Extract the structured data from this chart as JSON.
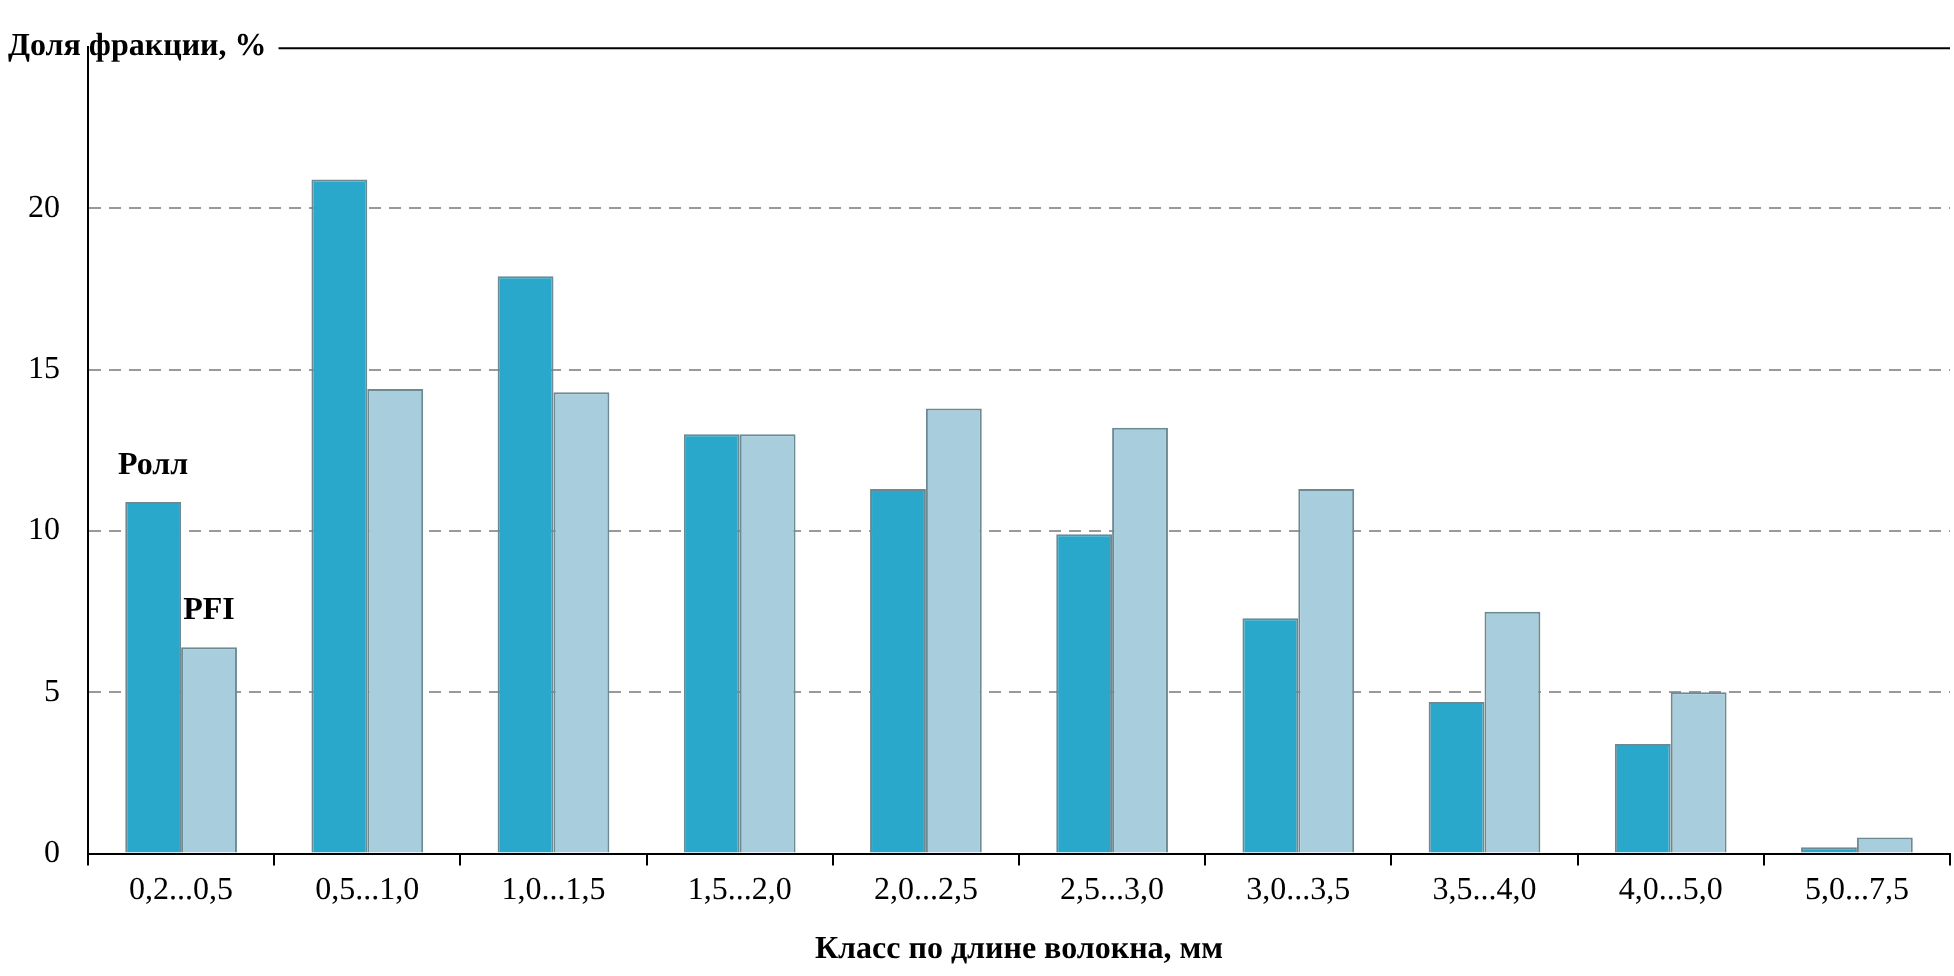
{
  "chart_data": {
    "type": "bar",
    "ylabel": "Доля фракции, %",
    "xlabel": "Класс по длине волокна, мм",
    "categories": [
      "0,2...0,5",
      "0,5...1,0",
      "1,0...1,5",
      "1,5...2,0",
      "2,0...2,5",
      "2,5...3,0",
      "3,0...3,5",
      "3,5...4,0",
      "4,0...5,0",
      "5,0...7,5"
    ],
    "series": [
      {
        "name": "Ролл",
        "color": "#2aa8cc",
        "values": [
          10.9,
          20.9,
          17.9,
          13.0,
          11.3,
          9.9,
          7.3,
          4.7,
          3.4,
          0.2
        ]
      },
      {
        "name": "PFI",
        "color": "#a8cedd",
        "values": [
          6.4,
          14.4,
          14.3,
          13.0,
          13.8,
          13.2,
          11.3,
          7.5,
          5.0,
          0.5
        ]
      }
    ],
    "ylim": [
      0,
      25
    ],
    "yticks": [
      0,
      5,
      10,
      15,
      20
    ],
    "grid": "y",
    "legend": false
  }
}
